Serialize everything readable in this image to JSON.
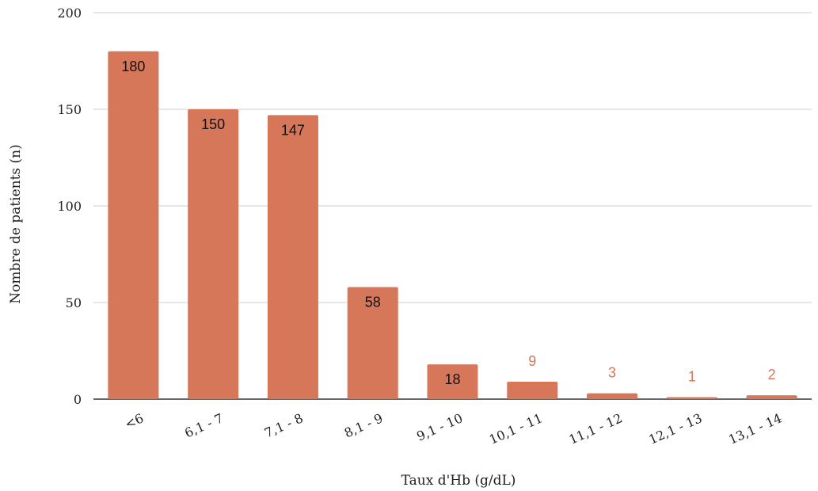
{
  "chart_data": {
    "type": "bar",
    "categories": [
      "<6",
      "6,1 - 7",
      "7,1 - 8",
      "8,1 - 9",
      "9,1 - 10",
      "10,1 - 11",
      "11,1 - 12",
      "12,1 - 13",
      "13,1 - 14"
    ],
    "values": [
      180,
      150,
      147,
      58,
      18,
      9,
      3,
      1,
      2
    ],
    "data_labels": [
      "180",
      "150",
      "147",
      "58",
      "18",
      "9",
      "3",
      "1",
      "2"
    ],
    "xlabel": "Taux d'Hb (g/dL)",
    "ylabel": "Nombre de patients (n)",
    "ylim": [
      0,
      200
    ],
    "yticks": [
      0,
      50,
      100,
      150,
      200
    ],
    "grid": true,
    "legend": "none",
    "colors": {
      "bar": "#d6775a",
      "label_inside": "#111111",
      "label_outside": "#d6775a"
    }
  }
}
